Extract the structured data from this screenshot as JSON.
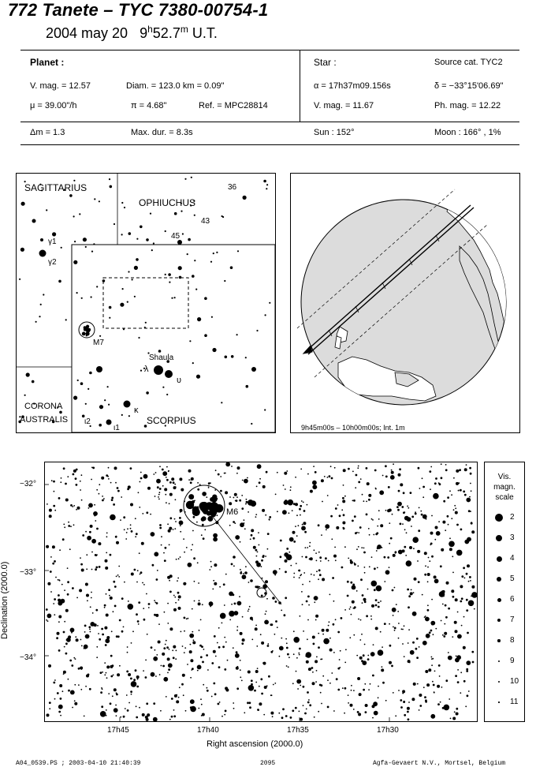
{
  "header": {
    "title": "772 Tanete  –  TYC 7380-00754-1",
    "date": "2004 may 20",
    "time_h": "9",
    "time_h_sup": "h",
    "time_m": "52.7",
    "time_m_sup": "m",
    "time_ut": "U.T."
  },
  "planet": {
    "heading": "Planet :",
    "vmag": "V. mag. = 12.57",
    "diam": "Diam. = 123.0 km = 0.09\"",
    "mu": "μ =  39.00\"/h",
    "pi": "π =  4.68\"",
    "ref": "Ref. = MPC28814"
  },
  "star": {
    "heading": "Star :",
    "source": "Source cat.  TYC2",
    "alpha": "α = 17h37m09.156s",
    "delta": "δ = −33°15'06.69\"",
    "vmag": "V. mag. = 11.67",
    "phmag": "Ph. mag. = 12.22"
  },
  "event": {
    "dm": "Δm = 1.3",
    "maxdur": "Max. dur. = 8.3s",
    "sun": "Sun : 152°",
    "moon": "Moon : 166° ,  1%"
  },
  "finder": {
    "sagittarius": "SAGITTARIUS",
    "ophiuchus": "OPHIUCHUS",
    "corona": "CORONA",
    "australis": "AUSTRALIS",
    "scorpius": "SCORPIUS",
    "shaula": "Shaula",
    "n36": "36",
    "n43": "43",
    "n45": "45",
    "gamma1": "γ1",
    "gamma2": "γ2",
    "m7": "M7",
    "lambda": "λ",
    "upsilon": "υ",
    "kappa": "κ",
    "iota2": "ι2",
    "iota1": "ι1"
  },
  "globe": {
    "caption": "9h45m00s – 10h00m00s; Int.  1m"
  },
  "chart": {
    "ylabel": "Declination (2000.0)",
    "xlabel": "Right ascension (2000.0)",
    "yticks": [
      "−32°",
      "−33°",
      "−34°"
    ],
    "xticks": [
      "17h45",
      "17h40",
      "17h35",
      "17h30"
    ],
    "m6": "M6"
  },
  "scale": {
    "title1": "Vis.",
    "title2": "magn.",
    "title3": "scale",
    "mags": [
      "2",
      "3",
      "4",
      "5",
      "6",
      "7",
      "8",
      "9",
      "10",
      "11"
    ]
  },
  "footer": {
    "left": "A04_0539.PS ; 2003-04-10 21:40:39",
    "center": "2095",
    "right": "Agfa-Gevaert N.V., Mortsel, Belgium"
  }
}
